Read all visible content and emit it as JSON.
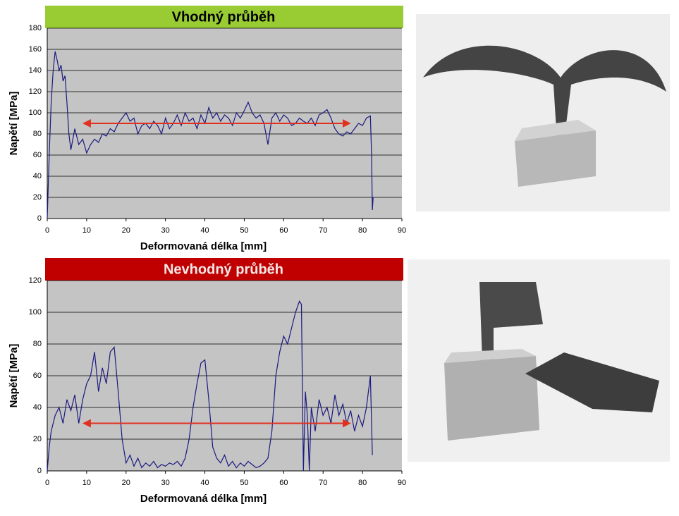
{
  "chart_data": [
    {
      "type": "line",
      "title": "Vhodný průběh",
      "title_background": "#99cc33",
      "title_text_color": "#000000",
      "xlabel": "Deformovaná délka [mm]",
      "ylabel": "Napětí [MPa]",
      "x": [
        0,
        0.5,
        1,
        1.5,
        2,
        2.5,
        3,
        3.5,
        4,
        4.5,
        5,
        5.5,
        6,
        7,
        8,
        9,
        10,
        11,
        12,
        13,
        14,
        15,
        16,
        17,
        18,
        19,
        20,
        21,
        22,
        23,
        24,
        25,
        26,
        27,
        28,
        29,
        30,
        31,
        32,
        33,
        34,
        35,
        36,
        37,
        38,
        39,
        40,
        41,
        42,
        43,
        44,
        45,
        46,
        47,
        48,
        49,
        50,
        51,
        52,
        53,
        54,
        55,
        56,
        57,
        58,
        59,
        60,
        61,
        62,
        63,
        64,
        65,
        66,
        67,
        68,
        69,
        70,
        71,
        72,
        73,
        74,
        75,
        76,
        77,
        78,
        79,
        80,
        81,
        82,
        82.3,
        82.5,
        82.7
      ],
      "series": [
        {
          "color": "#1a1a80",
          "values": [
            0,
            60,
            110,
            140,
            158,
            150,
            140,
            145,
            130,
            135,
            110,
            80,
            65,
            85,
            70,
            75,
            62,
            70,
            75,
            72,
            80,
            78,
            85,
            82,
            90,
            95,
            100,
            92,
            95,
            80,
            88,
            90,
            85,
            92,
            88,
            80,
            95,
            85,
            90,
            98,
            88,
            100,
            92,
            95,
            85,
            98,
            90,
            105,
            95,
            100,
            92,
            98,
            95,
            88,
            100,
            95,
            102,
            110,
            100,
            95,
            98,
            90,
            70,
            95,
            100,
            92,
            98,
            95,
            88,
            90,
            95,
            92,
            90,
            95,
            88,
            98,
            100,
            103,
            95,
            85,
            80,
            78,
            82,
            80,
            85,
            90,
            88,
            95,
            97,
            60,
            8,
            20
          ]
        }
      ],
      "xlim": [
        0,
        90
      ],
      "ylim": [
        0,
        180
      ],
      "xticks": [
        0,
        10,
        20,
        30,
        40,
        50,
        60,
        70,
        80,
        90
      ],
      "yticks": [
        0,
        20,
        40,
        60,
        80,
        100,
        120,
        140,
        160,
        180
      ],
      "grid": true,
      "plot_background": "#c4c4c4",
      "arrow": {
        "x": [
          10,
          76
        ],
        "y": 90,
        "color": "#e03020"
      }
    },
    {
      "type": "line",
      "title": "Nevhodný průběh",
      "title_background": "#c00000",
      "title_text_color": "#f4e8e8",
      "xlabel": "Deformovaná délka [mm]",
      "ylabel": "Napětí [MPa]",
      "x": [
        0,
        0.5,
        1,
        2,
        3,
        4,
        5,
        6,
        7,
        8,
        9,
        10,
        11,
        12,
        13,
        14,
        15,
        16,
        17,
        18,
        19,
        20,
        21,
        22,
        23,
        24,
        25,
        26,
        27,
        28,
        29,
        30,
        31,
        32,
        33,
        34,
        35,
        36,
        37,
        38,
        39,
        40,
        41,
        42,
        43,
        44,
        45,
        46,
        47,
        48,
        49,
        50,
        51,
        52,
        53,
        54,
        55,
        56,
        57,
        58,
        59,
        60,
        61,
        62,
        63,
        64,
        64.5,
        65,
        65.5,
        66,
        66.5,
        67,
        68,
        69,
        70,
        71,
        72,
        73,
        74,
        75,
        76,
        77,
        78,
        79,
        80,
        81,
        82,
        82.5
      ],
      "series": [
        {
          "color": "#1a1a80",
          "values": [
            0,
            15,
            25,
            35,
            40,
            30,
            45,
            38,
            48,
            30,
            45,
            55,
            60,
            75,
            50,
            65,
            55,
            75,
            78,
            50,
            20,
            5,
            10,
            3,
            8,
            2,
            5,
            3,
            6,
            2,
            4,
            3,
            5,
            4,
            6,
            3,
            8,
            20,
            40,
            55,
            68,
            70,
            45,
            15,
            8,
            5,
            10,
            3,
            6,
            2,
            5,
            3,
            6,
            4,
            2,
            3,
            5,
            8,
            25,
            60,
            75,
            85,
            80,
            90,
            100,
            107,
            105,
            0,
            50,
            35,
            0,
            40,
            25,
            45,
            35,
            40,
            30,
            48,
            35,
            42,
            30,
            38,
            25,
            35,
            28,
            40,
            60,
            10
          ]
        }
      ],
      "xlim": [
        0,
        90
      ],
      "ylim": [
        0,
        120
      ],
      "xticks": [
        0,
        10,
        20,
        30,
        40,
        50,
        60,
        70,
        80,
        90
      ],
      "yticks": [
        0,
        20,
        40,
        60,
        80,
        100,
        120
      ],
      "grid": true,
      "plot_background": "#c4c4c4",
      "arrow": {
        "x": [
          10,
          76
        ],
        "y": 30,
        "color": "#e03020"
      }
    }
  ]
}
